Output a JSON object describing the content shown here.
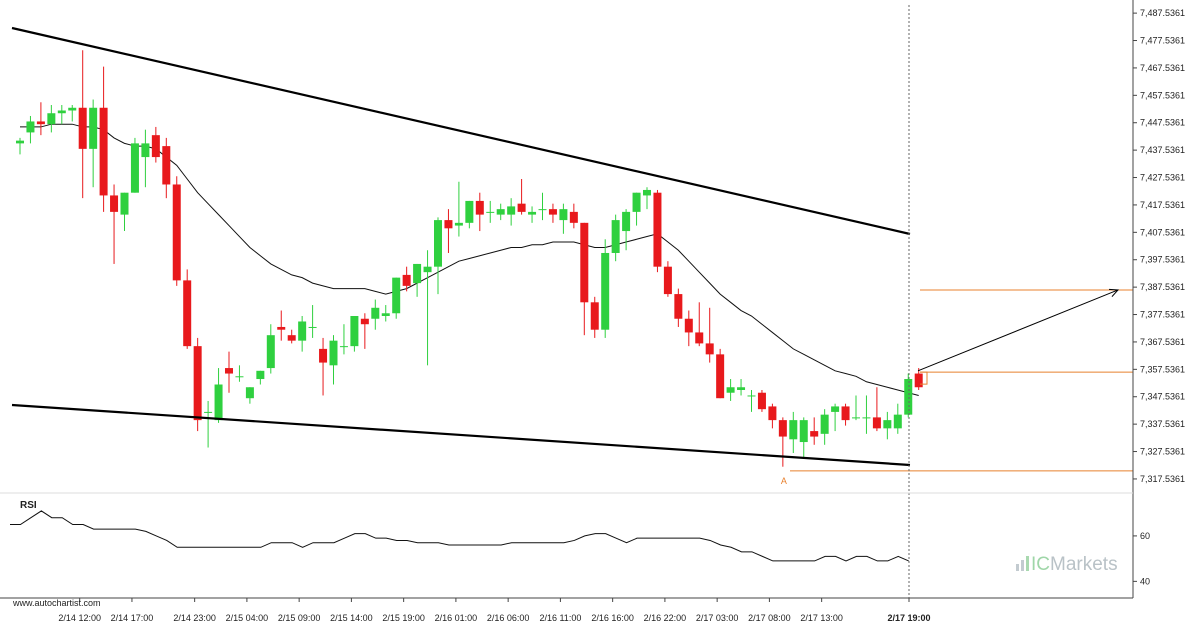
{
  "chart_data": {
    "type": "candlestick",
    "title": "",
    "y_axis": {
      "ticks": [
        "7,487.5361",
        "7,477.5361",
        "7,467.5361",
        "7,457.5361",
        "7,447.5361",
        "7,437.5361",
        "7,427.5361",
        "7,417.5361",
        "7,407.5361",
        "7,397.5361",
        "7,387.5361",
        "7,377.5361",
        "7,367.5361",
        "7,357.5361",
        "7,347.5361",
        "7,337.5361",
        "7,327.5361",
        "7,317.5361"
      ],
      "range": [
        7313.5,
        7490.5
      ],
      "position": "right"
    },
    "x_axis": {
      "ticks": [
        "2/14 12:00",
        "2/14 17:00",
        "2/14 23:00",
        "2/15 04:00",
        "2/15 09:00",
        "2/15 14:00",
        "2/15 19:00",
        "2/16 01:00",
        "2/16 06:00",
        "2/16 11:00",
        "2/16 16:00",
        "2/16 22:00",
        "2/17 03:00",
        "2/17 08:00",
        "2/17 13:00",
        "2/17 19:00"
      ],
      "current": "2/17 19:00"
    },
    "candles": [
      {
        "o": 7440,
        "h": 7442,
        "l": 7436,
        "c": 7441
      },
      {
        "o": 7444,
        "h": 7450,
        "l": 7440,
        "c": 7448
      },
      {
        "o": 7448,
        "h": 7455,
        "l": 7443,
        "c": 7447
      },
      {
        "o": 7447,
        "h": 7454,
        "l": 7444,
        "c": 7451
      },
      {
        "o": 7451,
        "h": 7454,
        "l": 7447,
        "c": 7452
      },
      {
        "o": 7452,
        "h": 7454,
        "l": 7448,
        "c": 7453
      },
      {
        "o": 7453,
        "h": 7474,
        "l": 7420,
        "c": 7438
      },
      {
        "o": 7438,
        "h": 7456,
        "l": 7424,
        "c": 7453
      },
      {
        "o": 7453,
        "h": 7468,
        "l": 7415,
        "c": 7421
      },
      {
        "o": 7421,
        "h": 7425,
        "l": 7396,
        "c": 7415
      },
      {
        "o": 7414,
        "h": 7422,
        "l": 7408,
        "c": 7422
      },
      {
        "o": 7422,
        "h": 7442,
        "l": 7422,
        "c": 7440
      },
      {
        "o": 7435,
        "h": 7445,
        "l": 7424,
        "c": 7440
      },
      {
        "o": 7443,
        "h": 7446,
        "l": 7433,
        "c": 7435
      },
      {
        "o": 7439,
        "h": 7442,
        "l": 7420,
        "c": 7425
      },
      {
        "o": 7425,
        "h": 7428,
        "l": 7388,
        "c": 7390
      },
      {
        "o": 7390,
        "h": 7394,
        "l": 7365,
        "c": 7366
      },
      {
        "o": 7366,
        "h": 7369,
        "l": 7335,
        "c": 7339
      },
      {
        "o": 7342,
        "h": 7346,
        "l": 7329,
        "c": 7342
      },
      {
        "o": 7339,
        "h": 7358,
        "l": 7338,
        "c": 7352
      },
      {
        "o": 7358,
        "h": 7364,
        "l": 7349,
        "c": 7356
      },
      {
        "o": 7355,
        "h": 7359,
        "l": 7353,
        "c": 7355
      },
      {
        "o": 7347,
        "h": 7351,
        "l": 7345,
        "c": 7351
      },
      {
        "o": 7354,
        "h": 7357,
        "l": 7352,
        "c": 7357
      },
      {
        "o": 7358,
        "h": 7374,
        "l": 7356,
        "c": 7370
      },
      {
        "o": 7373,
        "h": 7379,
        "l": 7368,
        "c": 7372
      },
      {
        "o": 7370,
        "h": 7372,
        "l": 7367,
        "c": 7368
      },
      {
        "o": 7368,
        "h": 7377,
        "l": 7364,
        "c": 7375
      },
      {
        "o": 7373,
        "h": 7381,
        "l": 7369,
        "c": 7373
      },
      {
        "o": 7365,
        "h": 7369,
        "l": 7348,
        "c": 7360
      },
      {
        "o": 7359,
        "h": 7370,
        "l": 7352,
        "c": 7368
      },
      {
        "o": 7366,
        "h": 7374,
        "l": 7363,
        "c": 7366
      },
      {
        "o": 7366,
        "h": 7377,
        "l": 7364,
        "c": 7377
      },
      {
        "o": 7376,
        "h": 7378,
        "l": 7365,
        "c": 7374
      },
      {
        "o": 7376,
        "h": 7383,
        "l": 7372,
        "c": 7380
      },
      {
        "o": 7377,
        "h": 7381,
        "l": 7375,
        "c": 7378
      },
      {
        "o": 7378,
        "h": 7391,
        "l": 7376,
        "c": 7391
      },
      {
        "o": 7392,
        "h": 7395,
        "l": 7386,
        "c": 7388
      },
      {
        "o": 7389,
        "h": 7396,
        "l": 7384,
        "c": 7396
      },
      {
        "o": 7393,
        "h": 7401,
        "l": 7359,
        "c": 7395
      },
      {
        "o": 7395,
        "h": 7413,
        "l": 7385,
        "c": 7412
      },
      {
        "o": 7412,
        "h": 7416,
        "l": 7400,
        "c": 7409
      },
      {
        "o": 7410,
        "h": 7426,
        "l": 7406,
        "c": 7411
      },
      {
        "o": 7411,
        "h": 7419,
        "l": 7409,
        "c": 7419
      },
      {
        "o": 7419,
        "h": 7422,
        "l": 7408,
        "c": 7414
      },
      {
        "o": 7415,
        "h": 7419,
        "l": 7411,
        "c": 7415
      },
      {
        "o": 7414,
        "h": 7418,
        "l": 7412,
        "c": 7416
      },
      {
        "o": 7414,
        "h": 7420,
        "l": 7410,
        "c": 7417
      },
      {
        "o": 7418,
        "h": 7427,
        "l": 7414,
        "c": 7415
      },
      {
        "o": 7414,
        "h": 7417,
        "l": 7411,
        "c": 7415
      },
      {
        "o": 7416,
        "h": 7422,
        "l": 7412,
        "c": 7416
      },
      {
        "o": 7416,
        "h": 7418,
        "l": 7411,
        "c": 7414
      },
      {
        "o": 7412,
        "h": 7418,
        "l": 7407,
        "c": 7416
      },
      {
        "o": 7415,
        "h": 7418,
        "l": 7409,
        "c": 7411
      },
      {
        "o": 7411,
        "h": 7411,
        "l": 7370,
        "c": 7382
      },
      {
        "o": 7382,
        "h": 7384,
        "l": 7369,
        "c": 7372
      },
      {
        "o": 7372,
        "h": 7405,
        "l": 7369,
        "c": 7400
      },
      {
        "o": 7400,
        "h": 7414,
        "l": 7397,
        "c": 7412
      },
      {
        "o": 7408,
        "h": 7416,
        "l": 7401,
        "c": 7415
      },
      {
        "o": 7415,
        "h": 7422,
        "l": 7410,
        "c": 7422
      },
      {
        "o": 7421,
        "h": 7424,
        "l": 7416,
        "c": 7423
      },
      {
        "o": 7422,
        "h": 7423,
        "l": 7393,
        "c": 7395
      },
      {
        "o": 7395,
        "h": 7397,
        "l": 7384,
        "c": 7385
      },
      {
        "o": 7385,
        "h": 7387,
        "l": 7373,
        "c": 7376
      },
      {
        "o": 7376,
        "h": 7379,
        "l": 7366,
        "c": 7371
      },
      {
        "o": 7371,
        "h": 7382,
        "l": 7366,
        "c": 7367
      },
      {
        "o": 7367,
        "h": 7380,
        "l": 7360,
        "c": 7363
      },
      {
        "o": 7363,
        "h": 7365,
        "l": 7347,
        "c": 7347
      },
      {
        "o": 7349,
        "h": 7354,
        "l": 7346,
        "c": 7351
      },
      {
        "o": 7350,
        "h": 7354,
        "l": 7348,
        "c": 7351
      },
      {
        "o": 7348,
        "h": 7350,
        "l": 7342,
        "c": 7348
      },
      {
        "o": 7349,
        "h": 7350,
        "l": 7342,
        "c": 7343
      },
      {
        "o": 7344,
        "h": 7345,
        "l": 7336,
        "c": 7339
      },
      {
        "o": 7339,
        "h": 7340,
        "l": 7322,
        "c": 7333
      },
      {
        "o": 7332,
        "h": 7342,
        "l": 7327,
        "c": 7339
      },
      {
        "o": 7331,
        "h": 7340,
        "l": 7325,
        "c": 7339
      },
      {
        "o": 7335,
        "h": 7340,
        "l": 7330,
        "c": 7333
      },
      {
        "o": 7334,
        "h": 7343,
        "l": 7330,
        "c": 7341
      },
      {
        "o": 7342,
        "h": 7345,
        "l": 7335,
        "c": 7344
      },
      {
        "o": 7344,
        "h": 7345,
        "l": 7337,
        "c": 7339
      },
      {
        "o": 7340,
        "h": 7348,
        "l": 7339,
        "c": 7340
      },
      {
        "o": 7340,
        "h": 7348,
        "l": 7334,
        "c": 7340
      },
      {
        "o": 7340,
        "h": 7351,
        "l": 7335,
        "c": 7336
      },
      {
        "o": 7336,
        "h": 7342,
        "l": 7332,
        "c": 7339
      },
      {
        "o": 7336,
        "h": 7345,
        "l": 7334,
        "c": 7341
      },
      {
        "o": 7341,
        "h": 7356,
        "l": 7340,
        "c": 7354
      },
      {
        "o": 7356,
        "h": 7358,
        "l": 7350,
        "c": 7351
      }
    ],
    "moving_average": [
      7446,
      7446,
      7446,
      7447,
      7447,
      7447,
      7446,
      7446,
      7445,
      7442,
      7440,
      7439,
      7439,
      7438,
      7435,
      7432,
      7427,
      7422,
      7418,
      7414,
      7410,
      7406,
      7402,
      7399,
      7396,
      7394,
      7392,
      7391,
      7389,
      7388,
      7387,
      7387,
      7387,
      7387,
      7386,
      7385,
      7386,
      7387,
      7389,
      7391,
      7393,
      7395,
      7397,
      7398,
      7399,
      7400,
      7401,
      7402,
      7402,
      7403,
      7403,
      7404,
      7404,
      7404,
      7403,
      7402,
      7402,
      7403,
      7404,
      7405,
      7406,
      7407,
      7404,
      7401,
      7397,
      7393,
      7389,
      7385,
      7382,
      7379,
      7377,
      7374,
      7371,
      7368,
      7365,
      7363,
      7361,
      7359,
      7357,
      7356,
      7355,
      7353,
      7352,
      7351,
      7350,
      7349,
      7348
    ],
    "channel": {
      "upper_line": {
        "from": {
          "index": 0,
          "value": 7483
        },
        "to": {
          "index": 86,
          "value": 7404
        }
      },
      "lower_line": {
        "from": {
          "index": 0,
          "value": 7342
        },
        "to": {
          "index": 86,
          "value": 7318
        }
      },
      "bar_spacing_in_candles": 1
    },
    "levels": [
      {
        "value": 7386.5,
        "color": "#e8802e",
        "label": ""
      },
      {
        "value": 7356.5,
        "color": "#e8802e",
        "label": ""
      },
      {
        "value": 7320.5,
        "color": "#e8802e",
        "label": ""
      }
    ],
    "point_label": {
      "text": "A",
      "index": 73,
      "value": 7320
    },
    "projection_arrow": {
      "from_value": 7357,
      "to_value": 7386.5
    },
    "rsi": {
      "label": "RSI",
      "ticks": [
        "60",
        "40"
      ],
      "tick_values": [
        60,
        40
      ],
      "range": [
        34,
        78
      ],
      "values": [
        65,
        65,
        68,
        71,
        68,
        68,
        65,
        65,
        63,
        63,
        63,
        63,
        63,
        62,
        60,
        58,
        55,
        55,
        55,
        55,
        55,
        55,
        55,
        55,
        55,
        57,
        57,
        57,
        55,
        57,
        57,
        57,
        59,
        61,
        61,
        59,
        59,
        58,
        58,
        57,
        57,
        57,
        56,
        56,
        56,
        56,
        56,
        56,
        57,
        57,
        57,
        57,
        57,
        57,
        58,
        60,
        61,
        61,
        59,
        57,
        59,
        59,
        59,
        59,
        59,
        59,
        59,
        58,
        56,
        55,
        53,
        53,
        51,
        49,
        49,
        49,
        49,
        49,
        51,
        51,
        49,
        51,
        51,
        49,
        49,
        51,
        49
      ]
    },
    "colors": {
      "bull": "#2fd03f",
      "bear": "#e8191c",
      "trendline": "#000000",
      "moving_average": "#111111",
      "levels": "#e8802e",
      "arrow": "#000000"
    }
  },
  "watermark": {
    "url": "www.autochartist.com"
  },
  "brand": {
    "ic": "IC",
    "markets": "Markets"
  }
}
